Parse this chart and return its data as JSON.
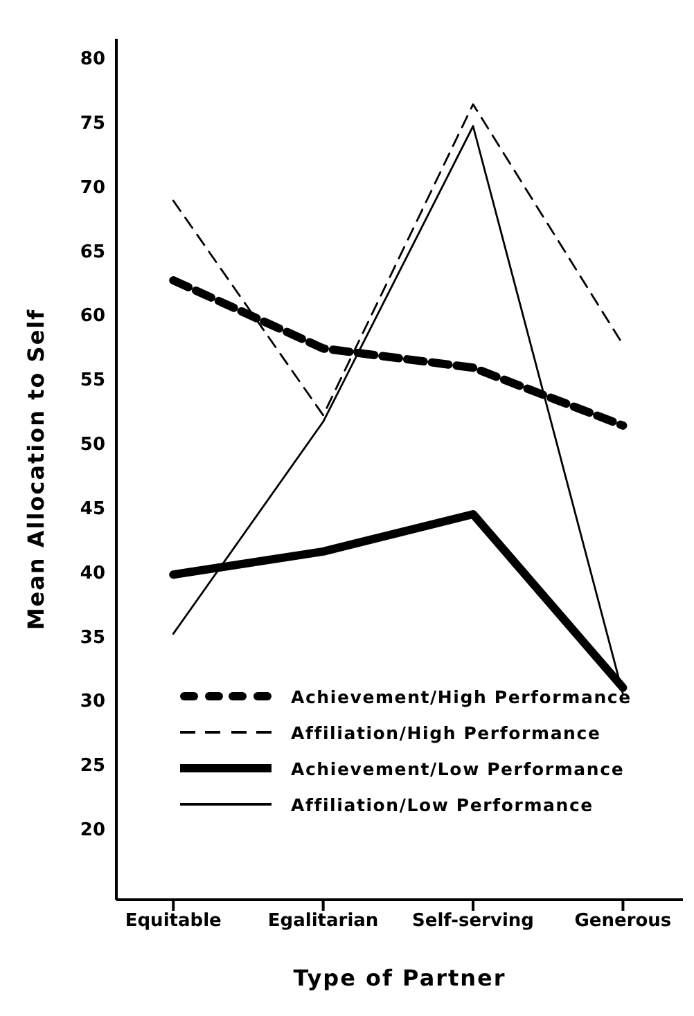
{
  "chart_data": {
    "type": "line",
    "xlabel": "Type of Partner",
    "ylabel": "Mean Allocation to Self",
    "categories": [
      "Equitable",
      "Egalitarian",
      "Self-serving",
      "Generous"
    ],
    "series": [
      {
        "name": "Achievement/High Performance",
        "color": "#000000",
        "line_style": "dashed",
        "values": [
          62.7,
          57.4,
          55.9,
          51.4
        ]
      },
      {
        "name": "Affiliation/High Performance",
        "color": "#000000",
        "line_style": "dashed",
        "values": [
          68.9,
          52.2,
          76.4,
          57.7
        ]
      },
      {
        "name": "Achievement/Low Performance",
        "color": "#000000",
        "line_style": "solid",
        "values": [
          39.8,
          41.6,
          44.5,
          31.0
        ]
      },
      {
        "name": "Affiliation/Low Performance",
        "color": "#000000",
        "line_style": "solid",
        "values": [
          35.2,
          51.7,
          74.7,
          30.5
        ]
      }
    ],
    "ylim": [
      14.5,
      81.5
    ],
    "yticks": [
      20,
      25,
      30,
      35,
      40,
      45,
      50,
      55,
      60,
      65,
      70,
      75,
      80
    ],
    "grid": false,
    "legend": "bottom",
    "marker": "none"
  }
}
